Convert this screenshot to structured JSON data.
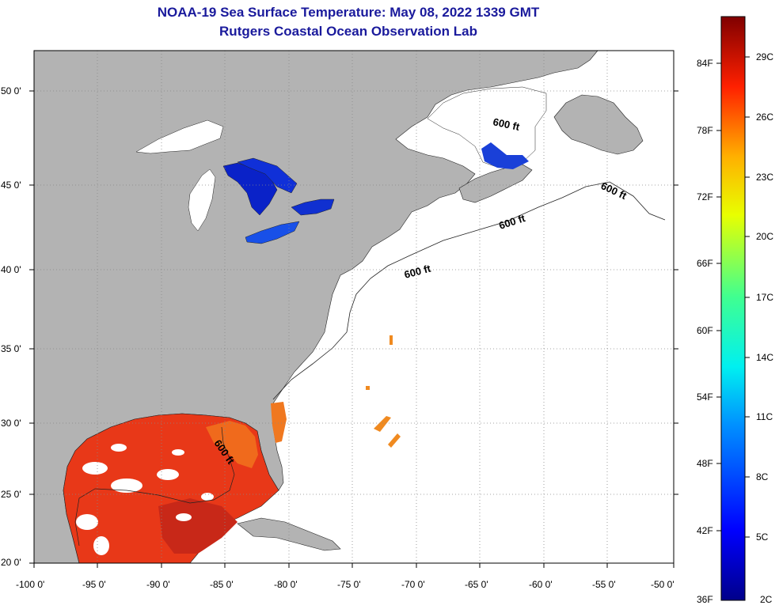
{
  "title": "NOAA-19 Sea Surface Temperature:  May 08, 2022 1339 GMT",
  "subtitle": "Rutgers Coastal Ocean Observation Lab",
  "map": {
    "lon_range": [
      -100,
      -50
    ],
    "lat_range": [
      20,
      52
    ],
    "lat_ticks": [
      "50 0'",
      "45 0'",
      "40 0'",
      "35 0'",
      "30 0'",
      "25 0'",
      "20 0'"
    ],
    "lon_ticks": [
      "-100 0'",
      "-95 0'",
      "-90 0'",
      "-85 0'",
      "-80 0'",
      "-75 0'",
      "-70 0'",
      "-65 0'",
      "-60 0'",
      "-55 0'",
      "-50 0'"
    ],
    "contour_labels": [
      "600 ft",
      "600 ft",
      "600 ft",
      "600 ft",
      "600 ft"
    ],
    "colors": {
      "land": "#b3b3b3",
      "ocean": "#ffffff",
      "grid": "#888888"
    }
  },
  "colorbar": {
    "fahrenheit_labels": [
      "84F",
      "78F",
      "72F",
      "66F",
      "60F",
      "54F",
      "48F",
      "42F",
      "36F"
    ],
    "celsius_labels": [
      "29C",
      "26C",
      "23C",
      "20C",
      "17C",
      "14C",
      "11C",
      "8C",
      "5C",
      "2C"
    ]
  }
}
